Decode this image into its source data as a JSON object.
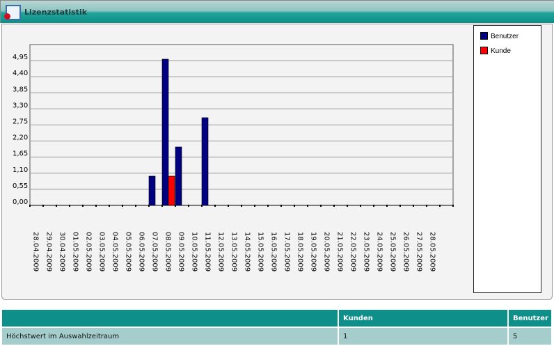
{
  "window": {
    "title": "Lizenzstatistik",
    "icon": "certificate-icon"
  },
  "chart_data": {
    "type": "bar",
    "categories": [
      "28.04.2009",
      "29.04.2009",
      "30.04.2009",
      "01.05.2009",
      "02.05.2009",
      "03.05.2009",
      "04.05.2009",
      "05.05.2009",
      "06.05.2009",
      "07.05.2009",
      "08.05.2009",
      "09.05.2009",
      "10.05.2009",
      "11.05.2009",
      "12.05.2009",
      "13.05.2009",
      "14.05.2009",
      "15.05.2009",
      "16.05.2009",
      "17.05.2009",
      "18.05.2009",
      "19.05.2009",
      "20.05.2009",
      "21.05.2009",
      "22.05.2009",
      "23.05.2009",
      "24.05.2009",
      "25.05.2009",
      "26.05.2009",
      "27.05.2009",
      "28.05.2009"
    ],
    "series": [
      {
        "name": "Benutzer",
        "color": "#000080",
        "values": [
          0,
          0,
          0,
          0,
          0,
          0,
          0,
          0,
          0,
          1,
          5,
          2,
          0,
          3,
          0,
          0,
          0,
          0,
          0,
          0,
          0,
          0,
          0,
          0,
          0,
          0,
          0,
          0,
          0,
          0,
          0
        ]
      },
      {
        "name": "Kunde",
        "color": "#ff0000",
        "values": [
          0,
          0,
          0,
          0,
          0,
          0,
          0,
          0,
          0,
          0,
          1,
          0,
          0,
          0,
          0,
          0,
          0,
          0,
          0,
          0,
          0,
          0,
          0,
          0,
          0,
          0,
          0,
          0,
          0,
          0,
          0
        ]
      }
    ],
    "yticks": [
      "0,00",
      "0,55",
      "1,10",
      "1,65",
      "2,20",
      "2,75",
      "3,30",
      "3,85",
      "4,40",
      "4,95"
    ],
    "ytick_values": [
      0,
      0.55,
      1.1,
      1.65,
      2.2,
      2.75,
      3.3,
      3.85,
      4.4,
      4.95
    ],
    "ylim": [
      0,
      5.5
    ],
    "grid": true,
    "legend": "right"
  },
  "table": {
    "headers": [
      "",
      "Kunden",
      "Benutzer"
    ],
    "rows": [
      [
        "Höchstwert im Auswahlzeitraum",
        "1",
        "5"
      ]
    ]
  }
}
